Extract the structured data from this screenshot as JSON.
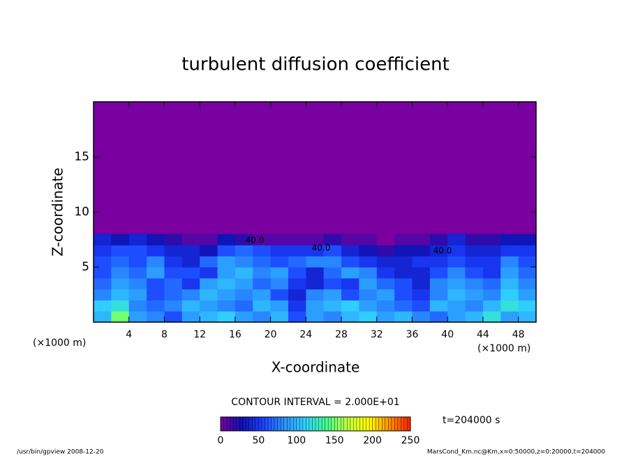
{
  "chart_data": {
    "type": "heatmap",
    "title": "turbulent diffusion coefficient",
    "xlabel": "X-coordinate",
    "ylabel": "Z-coordinate",
    "x_unit": "(×1000 m)",
    "xlim": [
      0,
      50
    ],
    "ylim": [
      0,
      20
    ],
    "xticks": [
      4,
      8,
      12,
      16,
      20,
      24,
      28,
      32,
      36,
      40,
      44,
      48
    ],
    "yticks": [
      5,
      10,
      15
    ],
    "x": [
      1,
      3,
      5,
      7,
      9,
      11,
      13,
      15,
      17,
      19,
      21,
      23,
      25,
      27,
      29,
      31,
      33,
      35,
      37,
      39,
      41,
      43,
      45,
      47,
      49
    ],
    "y": [
      0.5,
      1.5,
      2.5,
      3.5,
      4.5,
      5.5,
      6.5,
      7.5
    ],
    "z": [
      [
        100,
        150,
        90,
        80,
        60,
        90,
        100,
        110,
        90,
        80,
        100,
        60,
        90,
        80,
        100,
        110,
        90,
        100,
        80,
        70,
        90,
        100,
        120,
        90,
        100
      ],
      [
        110,
        120,
        80,
        70,
        80,
        100,
        90,
        80,
        70,
        100,
        90,
        50,
        90,
        100,
        110,
        90,
        80,
        70,
        60,
        100,
        90,
        80,
        100,
        120,
        110
      ],
      [
        80,
        100,
        90,
        60,
        70,
        80,
        100,
        90,
        80,
        90,
        60,
        40,
        80,
        90,
        60,
        80,
        90,
        60,
        50,
        80,
        100,
        90,
        80,
        110,
        90
      ],
      [
        70,
        90,
        80,
        60,
        70,
        50,
        90,
        100,
        90,
        70,
        80,
        50,
        40,
        60,
        50,
        90,
        70,
        60,
        40,
        80,
        90,
        80,
        70,
        100,
        80
      ],
      [
        60,
        80,
        70,
        90,
        60,
        60,
        50,
        90,
        100,
        80,
        90,
        60,
        40,
        70,
        90,
        80,
        50,
        40,
        40,
        60,
        80,
        60,
        50,
        90,
        70
      ],
      [
        60,
        70,
        60,
        80,
        50,
        40,
        70,
        90,
        80,
        70,
        60,
        70,
        80,
        80,
        60,
        50,
        40,
        40,
        50,
        50,
        60,
        50,
        50,
        80,
        60
      ],
      [
        50,
        60,
        60,
        50,
        40,
        40,
        30,
        60,
        70,
        60,
        50,
        50,
        50,
        60,
        40,
        30,
        20,
        30,
        30,
        40,
        50,
        40,
        40,
        50,
        50
      ],
      [
        40,
        30,
        40,
        30,
        20,
        10,
        10,
        30,
        20,
        10,
        10,
        10,
        10,
        20,
        10,
        10,
        0,
        10,
        10,
        20,
        40,
        20,
        20,
        30,
        30
      ]
    ],
    "clim": [
      0,
      250
    ],
    "cticks": [
      0,
      50,
      100,
      150,
      200,
      250
    ],
    "colors": [
      "#7a00a0",
      "#1010b0",
      "#1a40ff",
      "#2a90ff",
      "#30d0ff",
      "#40ff90",
      "#c0ff40",
      "#ffff00",
      "#ff9000",
      "#ff2000"
    ],
    "contour_interval": "CONTOUR INTERVAL = 2.000E+01",
    "contour_label": "40.0",
    "time_label": "t=204000 s",
    "footer_left": "/usr/bin/gpview   2008-12-20",
    "footer_right": "MarsCond_Km.nc@Km,x=0:50000,z=0:20000,t=204000"
  }
}
